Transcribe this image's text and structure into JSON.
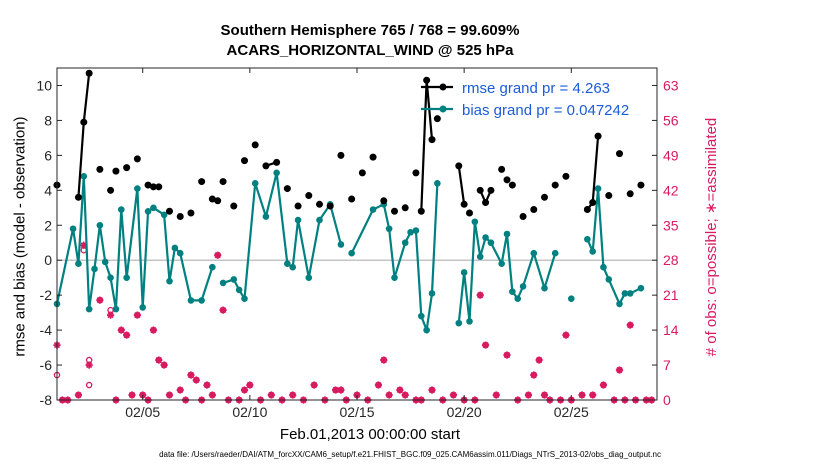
{
  "titles": {
    "line1": "Southern Hemisphere 765 / 768 = 99.609%",
    "line2": "ACARS_HORIZONTAL_WIND @ 525 hPa"
  },
  "xlabel": "Feb.01,2013 00:00:00 start",
  "ylabel_left": "rmse and bias (model - observation)",
  "ylabel_right": "# of obs: o=possible; ∗=assimilated",
  "footnote": "data file: /Users/raeder/DAI/ATM_forcXX/CAM6_setup/f.e21.FHIST_BGC.f09_025.CAM6assim.011/Diags_NTrS_2013-02/obs_diag_output.nc",
  "colors": {
    "rmse": "#000000",
    "bias": "#008080",
    "obs": "#d81b60",
    "legend_text": "#1c5bd9",
    "zero_line": "#b0b0b0"
  },
  "chart_data": {
    "type": "line",
    "x_unit": "day of Feb 2013",
    "xlim": [
      1,
      29
    ],
    "xticks": [
      5,
      10,
      15,
      20,
      25
    ],
    "xticklabels": [
      "02/05",
      "02/10",
      "02/15",
      "02/20",
      "02/25"
    ],
    "left_axis": {
      "ylim": [
        -8,
        11
      ],
      "ticks": [
        -8,
        -6,
        -4,
        -2,
        0,
        2,
        4,
        6,
        8,
        10
      ]
    },
    "right_axis": {
      "ylim": [
        0,
        66.5
      ],
      "ticks": [
        0,
        7,
        14,
        21,
        28,
        35,
        42,
        49,
        56,
        63
      ]
    },
    "legend": {
      "position": "top-right",
      "entries": [
        "rmse grand pr = 4.263",
        "bias grand pr = 0.047242"
      ]
    },
    "series": [
      {
        "name": "rmse grand pr = 4.263",
        "axis": "left",
        "points": [
          [
            1.0,
            4.3
          ],
          [
            2.0,
            3.6
          ],
          [
            2.25,
            7.9
          ],
          [
            2.5,
            10.7
          ],
          [
            3.0,
            5.2
          ],
          [
            3.5,
            4.0
          ],
          [
            3.75,
            5.1
          ],
          [
            4.25,
            5.3
          ],
          [
            4.75,
            5.8
          ],
          [
            5.25,
            4.3
          ],
          [
            5.5,
            4.2
          ],
          [
            5.75,
            4.2
          ],
          [
            6.25,
            2.8
          ],
          [
            6.75,
            2.5
          ],
          [
            7.25,
            2.7
          ],
          [
            7.75,
            4.5
          ],
          [
            8.25,
            3.5
          ],
          [
            8.5,
            3.4
          ],
          [
            8.75,
            4.5
          ],
          [
            9.25,
            3.1
          ],
          [
            9.75,
            5.7
          ],
          [
            10.25,
            6.6
          ],
          [
            10.75,
            5.4
          ],
          [
            11.25,
            5.6
          ],
          [
            11.75,
            4.1
          ],
          [
            12.25,
            3.1
          ],
          [
            12.75,
            3.7
          ],
          [
            13.25,
            3.2
          ],
          [
            13.75,
            3.1
          ],
          [
            14.25,
            6.0
          ],
          [
            14.75,
            3.5
          ],
          [
            15.25,
            5.0
          ],
          [
            15.75,
            5.9
          ],
          [
            16.25,
            3.4
          ],
          [
            16.75,
            2.8
          ],
          [
            17.25,
            3.0
          ],
          [
            17.75,
            5.0
          ],
          [
            18.0,
            2.8
          ],
          [
            18.25,
            10.3
          ],
          [
            18.5,
            6.9
          ],
          [
            18.75,
            8.1
          ],
          [
            19.75,
            5.4
          ],
          [
            20.0,
            3.2
          ],
          [
            20.25,
            2.7
          ],
          [
            20.75,
            4.0
          ],
          [
            21.0,
            3.3
          ],
          [
            21.25,
            4.0
          ],
          [
            21.75,
            5.2
          ],
          [
            22.0,
            4.6
          ],
          [
            22.25,
            4.3
          ],
          [
            22.75,
            2.5
          ],
          [
            23.25,
            2.9
          ],
          [
            23.75,
            3.6
          ],
          [
            24.25,
            4.3
          ],
          [
            24.75,
            4.8
          ],
          [
            25.75,
            2.9
          ],
          [
            26.0,
            3.3
          ],
          [
            26.25,
            7.1
          ],
          [
            26.75,
            3.7
          ],
          [
            27.25,
            6.1
          ],
          [
            27.75,
            3.8
          ],
          [
            28.25,
            4.3
          ]
        ],
        "connected_segments": [
          [
            2.0,
            2.5
          ],
          [
            10.75,
            11.25
          ],
          [
            18.0,
            18.5
          ],
          [
            19.75,
            20.0
          ],
          [
            20.75,
            21.25
          ],
          [
            25.75,
            26.25
          ]
        ]
      },
      {
        "name": "bias grand pr = 0.047242",
        "axis": "left",
        "points": [
          [
            1.0,
            -2.5
          ],
          [
            1.75,
            1.8
          ],
          [
            2.0,
            -0.2
          ],
          [
            2.25,
            4.8
          ],
          [
            2.5,
            -2.8
          ],
          [
            2.75,
            -0.5
          ],
          [
            3.0,
            2.0
          ],
          [
            3.25,
            -0.1
          ],
          [
            3.5,
            -1.0
          ],
          [
            3.75,
            -2.8
          ],
          [
            4.0,
            2.9
          ],
          [
            4.25,
            -1.0
          ],
          [
            4.75,
            4.1
          ],
          [
            5.0,
            -2.7
          ],
          [
            5.25,
            2.8
          ],
          [
            5.5,
            3.0
          ],
          [
            6.0,
            2.6
          ],
          [
            6.25,
            -1.2
          ],
          [
            6.5,
            0.7
          ],
          [
            6.75,
            0.4
          ],
          [
            7.25,
            -2.3
          ],
          [
            7.75,
            -2.3
          ],
          [
            8.25,
            -0.4
          ],
          [
            8.75,
            -1.3
          ],
          [
            9.25,
            -1.1
          ],
          [
            9.5,
            -1.7
          ],
          [
            9.75,
            -2.2
          ],
          [
            10.25,
            4.4
          ],
          [
            10.75,
            2.5
          ],
          [
            11.25,
            5.0
          ],
          [
            11.75,
            -0.2
          ],
          [
            12.0,
            -0.4
          ],
          [
            12.25,
            2.3
          ],
          [
            12.75,
            -1.0
          ],
          [
            13.25,
            2.3
          ],
          [
            13.75,
            3.2
          ],
          [
            14.25,
            0.9
          ],
          [
            14.75,
            0.4
          ],
          [
            15.75,
            2.9
          ],
          [
            16.25,
            3.2
          ],
          [
            16.5,
            1.8
          ],
          [
            16.75,
            -1.0
          ],
          [
            17.25,
            1.0
          ],
          [
            17.5,
            1.6
          ],
          [
            17.75,
            1.7
          ],
          [
            18.0,
            -3.2
          ],
          [
            18.25,
            -4.0
          ],
          [
            18.5,
            -1.9
          ],
          [
            18.75,
            4.4
          ],
          [
            19.75,
            -3.6
          ],
          [
            20.0,
            -0.7
          ],
          [
            20.25,
            -3.5
          ],
          [
            20.5,
            2.2
          ],
          [
            20.75,
            0.2
          ],
          [
            21.0,
            1.3
          ],
          [
            21.25,
            1.0
          ],
          [
            21.75,
            -0.2
          ],
          [
            22.0,
            1.5
          ],
          [
            22.25,
            -1.8
          ],
          [
            22.5,
            -2.2
          ],
          [
            22.75,
            -1.5
          ],
          [
            23.25,
            0.4
          ],
          [
            23.75,
            -1.6
          ],
          [
            24.25,
            0.4
          ],
          [
            25.0,
            -2.2
          ],
          [
            25.75,
            1.2
          ],
          [
            26.0,
            0.5
          ],
          [
            26.25,
            4.1
          ],
          [
            26.5,
            -0.4
          ],
          [
            26.75,
            -1.1
          ],
          [
            27.25,
            -2.5
          ],
          [
            27.5,
            -1.9
          ],
          [
            27.75,
            -1.9
          ],
          [
            28.25,
            -1.6
          ]
        ],
        "breaks": [
          8.25,
          14.25,
          18.75,
          24.25,
          25.0
        ]
      },
      {
        "name": "possible",
        "axis": "right",
        "marker": "o",
        "points": [
          [
            1.0,
            5
          ],
          [
            1.25,
            0
          ],
          [
            1.5,
            0
          ],
          [
            2.0,
            1
          ],
          [
            2.25,
            30
          ],
          [
            2.5,
            3
          ],
          [
            2.5,
            8
          ],
          [
            3.0,
            20
          ],
          [
            3.5,
            18
          ],
          [
            3.75,
            0
          ],
          [
            4.0,
            14
          ],
          [
            4.25,
            13
          ],
          [
            4.5,
            1
          ],
          [
            4.75,
            17
          ],
          [
            5.0,
            1
          ],
          [
            5.25,
            0
          ],
          [
            5.5,
            14
          ],
          [
            5.75,
            8
          ],
          [
            6.0,
            7
          ],
          [
            6.25,
            1
          ],
          [
            6.75,
            2
          ],
          [
            7.0,
            0
          ],
          [
            7.25,
            5
          ],
          [
            7.5,
            4
          ],
          [
            7.75,
            0
          ],
          [
            8.0,
            3
          ],
          [
            8.25,
            1
          ],
          [
            8.5,
            29
          ],
          [
            8.75,
            18
          ],
          [
            9.0,
            0
          ],
          [
            9.5,
            0
          ],
          [
            9.75,
            2
          ],
          [
            10.0,
            3
          ],
          [
            10.5,
            0
          ],
          [
            11.0,
            1
          ],
          [
            11.5,
            0
          ],
          [
            12.0,
            1
          ],
          [
            12.5,
            0
          ],
          [
            13.0,
            3
          ],
          [
            13.5,
            0
          ],
          [
            14.0,
            2
          ],
          [
            14.25,
            2
          ],
          [
            14.5,
            0
          ],
          [
            15.0,
            1
          ],
          [
            15.5,
            0
          ],
          [
            16.0,
            3
          ],
          [
            16.25,
            8
          ],
          [
            16.5,
            1
          ],
          [
            17.0,
            2
          ],
          [
            17.25,
            1
          ],
          [
            17.75,
            0
          ],
          [
            18.0,
            0
          ],
          [
            18.5,
            2
          ],
          [
            19.0,
            0
          ],
          [
            19.5,
            1
          ],
          [
            20.0,
            0
          ],
          [
            20.5,
            0
          ],
          [
            20.75,
            21
          ],
          [
            21.0,
            11
          ],
          [
            21.5,
            1
          ],
          [
            22.0,
            9
          ],
          [
            22.5,
            0
          ],
          [
            23.0,
            1
          ],
          [
            23.25,
            5
          ],
          [
            23.5,
            8
          ],
          [
            23.75,
            1
          ],
          [
            24.0,
            0
          ],
          [
            24.5,
            0
          ],
          [
            24.75,
            13
          ],
          [
            25.0,
            0
          ],
          [
            25.5,
            1
          ],
          [
            26.0,
            1
          ],
          [
            26.5,
            3
          ],
          [
            27.0,
            0
          ],
          [
            27.25,
            6
          ],
          [
            27.5,
            0
          ],
          [
            27.75,
            15
          ],
          [
            28.0,
            0
          ],
          [
            28.5,
            0
          ],
          [
            28.75,
            0
          ]
        ]
      },
      {
        "name": "assimilated",
        "axis": "right",
        "marker": "*",
        "points": [
          [
            1.0,
            11
          ],
          [
            1.25,
            0
          ],
          [
            1.5,
            0
          ],
          [
            2.0,
            1
          ],
          [
            2.25,
            31
          ],
          [
            2.5,
            7
          ],
          [
            3.0,
            20
          ],
          [
            3.5,
            17
          ],
          [
            3.75,
            0
          ],
          [
            4.0,
            14
          ],
          [
            4.25,
            13
          ],
          [
            4.5,
            1
          ],
          [
            4.75,
            17
          ],
          [
            5.0,
            1
          ],
          [
            5.25,
            0
          ],
          [
            5.5,
            14
          ],
          [
            5.75,
            8
          ],
          [
            6.0,
            7
          ],
          [
            6.25,
            1
          ],
          [
            6.75,
            2
          ],
          [
            7.0,
            0
          ],
          [
            7.25,
            5
          ],
          [
            7.5,
            4
          ],
          [
            7.75,
            0
          ],
          [
            8.0,
            3
          ],
          [
            8.25,
            1
          ],
          [
            8.5,
            29
          ],
          [
            8.75,
            18
          ],
          [
            9.0,
            0
          ],
          [
            9.5,
            0
          ],
          [
            9.75,
            2
          ],
          [
            10.0,
            3
          ],
          [
            10.5,
            0
          ],
          [
            11.0,
            1
          ],
          [
            11.5,
            0
          ],
          [
            12.0,
            1
          ],
          [
            12.5,
            0
          ],
          [
            13.0,
            3
          ],
          [
            13.5,
            0
          ],
          [
            14.0,
            2
          ],
          [
            14.25,
            2
          ],
          [
            14.5,
            0
          ],
          [
            15.0,
            1
          ],
          [
            15.5,
            0
          ],
          [
            16.0,
            3
          ],
          [
            16.25,
            8
          ],
          [
            16.5,
            1
          ],
          [
            17.0,
            2
          ],
          [
            17.25,
            1
          ],
          [
            17.75,
            0
          ],
          [
            18.0,
            0
          ],
          [
            18.5,
            2
          ],
          [
            19.0,
            0
          ],
          [
            19.5,
            1
          ],
          [
            20.0,
            0
          ],
          [
            20.5,
            0
          ],
          [
            20.75,
            21
          ],
          [
            21.0,
            11
          ],
          [
            21.5,
            1
          ],
          [
            22.0,
            9
          ],
          [
            22.5,
            0
          ],
          [
            23.0,
            1
          ],
          [
            23.25,
            5
          ],
          [
            23.5,
            8
          ],
          [
            23.75,
            1
          ],
          [
            24.0,
            0
          ],
          [
            24.5,
            0
          ],
          [
            24.75,
            13
          ],
          [
            25.0,
            0
          ],
          [
            25.5,
            1
          ],
          [
            26.0,
            1
          ],
          [
            26.5,
            3
          ],
          [
            27.0,
            0
          ],
          [
            27.25,
            6
          ],
          [
            27.5,
            0
          ],
          [
            27.75,
            15
          ],
          [
            28.0,
            0
          ],
          [
            28.5,
            0
          ],
          [
            28.75,
            0
          ]
        ]
      }
    ]
  }
}
